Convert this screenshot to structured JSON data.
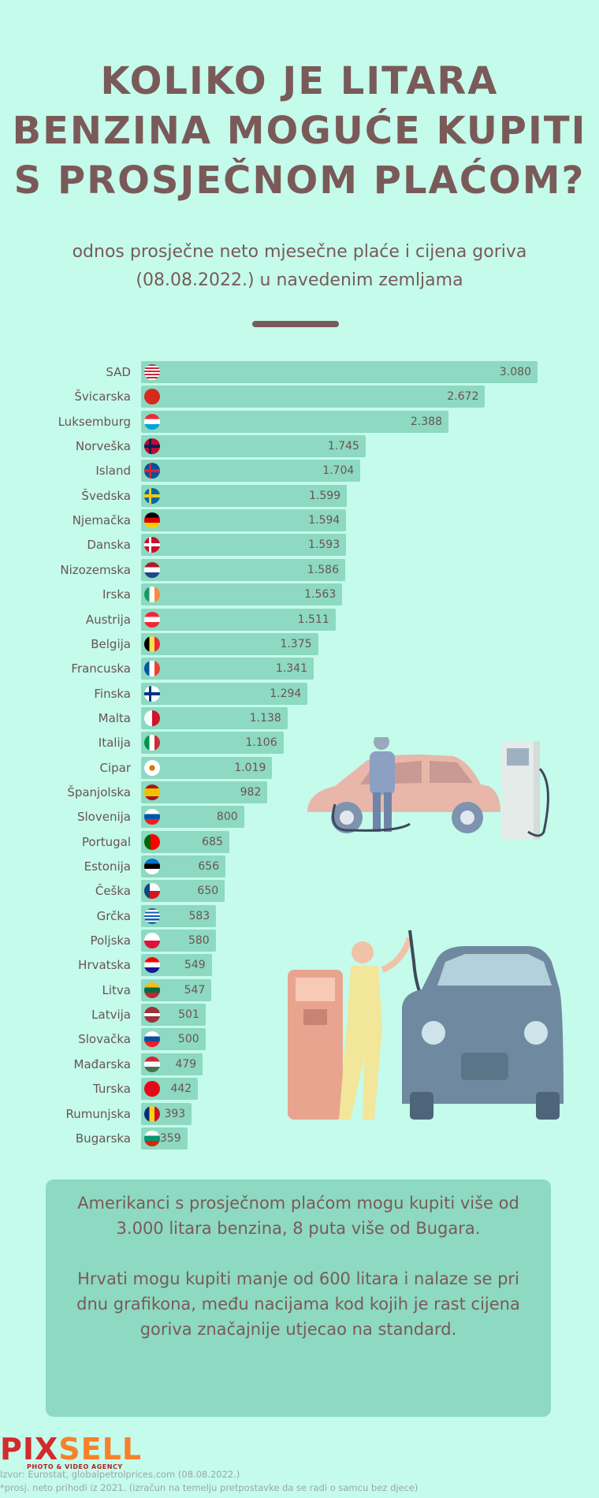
{
  "header": {
    "title": "KOLIKO JE LITARA BENZINA MOGUĆE KUPITI S PROSJEČNOM PLAĆOM?",
    "subtitle": "odnos prosječne neto mjesečne plaće i cijena goriva (08.08.2022.) u navedenim zemljama"
  },
  "colors": {
    "background": "#c4fbeb",
    "bar": "#8dd9c1",
    "text": "#7a5a58"
  },
  "chart_data": {
    "type": "bar",
    "orientation": "horizontal",
    "title": "",
    "xlabel": "",
    "ylabel": "",
    "categories": [
      "SAD",
      "Švicarska",
      "Luksemburg",
      "Norveška",
      "Island",
      "Švedska",
      "Njemačka",
      "Danska",
      "Nizozemska",
      "Irska",
      "Austrija",
      "Belgija",
      "Francuska",
      "Finska",
      "Malta",
      "Italija",
      "Cipar",
      "Španjolska",
      "Slovenija",
      "Portugal",
      "Estonija",
      "Češka",
      "Grčka",
      "Poljska",
      "Hrvatska",
      "Litva",
      "Latvija",
      "Slovačka",
      "Mađarska",
      "Turska",
      "Rumunjska",
      "Bugarska"
    ],
    "values": [
      3080,
      2672,
      2388,
      1745,
      1704,
      1599,
      1594,
      1593,
      1586,
      1563,
      1511,
      1375,
      1341,
      1294,
      1138,
      1106,
      1019,
      982,
      800,
      685,
      656,
      650,
      583,
      580,
      549,
      547,
      501,
      500,
      479,
      442,
      393,
      359
    ],
    "value_labels": [
      "3.080",
      "2.672",
      "2.388",
      "1.745",
      "1.704",
      "1.599",
      "1.594",
      "1.593",
      "1.586",
      "1.563",
      "1.511",
      "1.375",
      "1.341",
      "1.294",
      "1.138",
      "1.106",
      "1.019",
      "982",
      "800",
      "685",
      "656",
      "650",
      "583",
      "580",
      "549",
      "547",
      "501",
      "500",
      "479",
      "442",
      "393",
      "359"
    ],
    "flags": [
      "us-flag-icon",
      "switzerland-flag-icon",
      "luxembourg-flag-icon",
      "norway-flag-icon",
      "iceland-flag-icon",
      "sweden-flag-icon",
      "germany-flag-icon",
      "denmark-flag-icon",
      "netherlands-flag-icon",
      "ireland-flag-icon",
      "austria-flag-icon",
      "belgium-flag-icon",
      "france-flag-icon",
      "finland-flag-icon",
      "malta-flag-icon",
      "italy-flag-icon",
      "cyprus-flag-icon",
      "spain-flag-icon",
      "slovenia-flag-icon",
      "portugal-flag-icon",
      "estonia-flag-icon",
      "czechia-flag-icon",
      "greece-flag-icon",
      "poland-flag-icon",
      "croatia-flag-icon",
      "lithuania-flag-icon",
      "latvia-flag-icon",
      "slovakia-flag-icon",
      "hungary-flag-icon",
      "turkey-flag-icon",
      "romania-flag-icon",
      "bulgaria-flag-icon"
    ],
    "xlim": [
      0,
      3080
    ],
    "grid": false,
    "legend": "none"
  },
  "note": {
    "paragraph1": "Amerikanci s prosječnom plaćom mogu kupiti više od 3.000 litara benzina, 8 puta više od Bugara.",
    "paragraph2": "Hrvati mogu kupiti manje od 600 litara i nalaze se pri dnu grafikona, među nacijama kod kojih je rast cijena goriva značajnije utjecao na standard."
  },
  "footer": {
    "logo_part1": "PIX",
    "logo_part2": "SELL",
    "logo_tagline": "PHOTO & VIDEO AGENCY",
    "source": "Izvor: Eurostat, globalpetrolprices.com (08.08.2022.)",
    "footnote": "*prosj. neto prihodi iz 2021. (izračun na temelju pretpostavke da se radi o samcu bez djece)"
  }
}
